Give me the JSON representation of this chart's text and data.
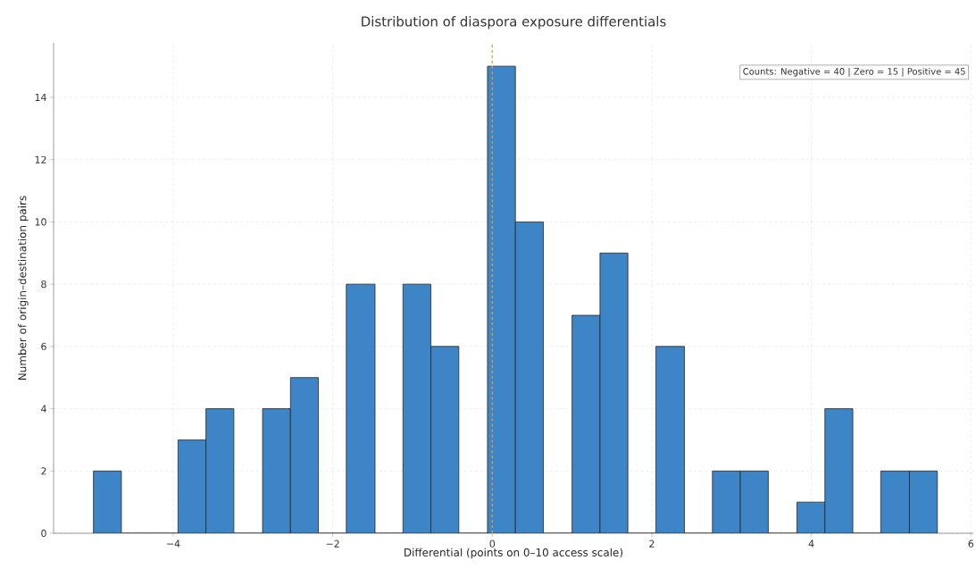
{
  "chart_data": {
    "type": "histogram",
    "title": "Distribution of diaspora exposure differentials",
    "xlabel": "Differential (points on 0–10 access scale)",
    "ylabel": "Number of origin–destination pairs",
    "bins": [
      -5.0,
      -4.65,
      -3.94,
      -3.59,
      -3.24,
      -2.88,
      -2.53,
      -2.18,
      -1.83,
      -1.47,
      -1.12,
      -0.77,
      -0.42,
      -0.06,
      0.29,
      0.64,
      1.0,
      1.35,
      1.7,
      2.05,
      2.41,
      2.76,
      3.11,
      3.46,
      3.82,
      4.17,
      4.52,
      4.87,
      5.23,
      5.58
    ],
    "values": [
      2,
      0,
      3,
      4,
      0,
      4,
      5,
      0,
      8,
      0,
      8,
      6,
      0,
      15,
      10,
      0,
      7,
      9,
      0,
      6,
      0,
      2,
      2,
      0,
      1,
      4,
      0,
      2,
      2
    ],
    "color": "#3d85c6",
    "xlim": [
      -5.5,
      6.03
    ],
    "ylim": [
      0,
      15.75
    ],
    "xticks": [
      {
        "value": -4,
        "label": "−4"
      },
      {
        "value": -2,
        "label": "−2"
      },
      0,
      2,
      4,
      6
    ],
    "yticks": [
      0,
      2,
      4,
      6,
      8,
      10,
      12,
      14
    ],
    "grid": true,
    "ref_lines": [
      {
        "axis": "x",
        "value": 0,
        "color": "#f0a020",
        "line_style": "dashed"
      }
    ],
    "annotations": [
      "Counts:  Negative = 40 | Zero = 15 | Positive = 45"
    ]
  }
}
